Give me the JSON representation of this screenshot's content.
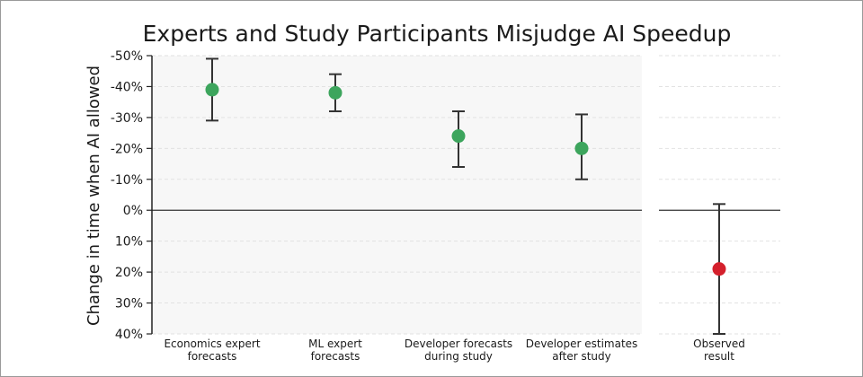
{
  "chart_data": {
    "type": "scatter",
    "title": "Experts and Study Participants Misjudge AI Speedup",
    "ylabel": "Change in time when AI allowed",
    "y_inverted": true,
    "ylim": [
      -50,
      40
    ],
    "yticks": [
      {
        "value": -50,
        "label": "-50%"
      },
      {
        "value": -40,
        "label": "-40%"
      },
      {
        "value": -30,
        "label": "-30%"
      },
      {
        "value": -20,
        "label": "-20%"
      },
      {
        "value": -10,
        "label": "-10%"
      },
      {
        "value": 0,
        "label": "0%"
      },
      {
        "value": 10,
        "label": "10%"
      },
      {
        "value": 20,
        "label": "20%"
      },
      {
        "value": 30,
        "label": "30%"
      },
      {
        "value": 40,
        "label": "40%"
      }
    ],
    "grid": true,
    "panels": [
      {
        "name": "forecasts",
        "background": "#f7f7f7",
        "points": [
          {
            "category": [
              "Economics expert",
              "forecasts"
            ],
            "value": -39,
            "low": -49,
            "high": -29,
            "color": "#3da55d"
          },
          {
            "category": [
              "ML expert",
              "forecasts"
            ],
            "value": -38,
            "low": -44,
            "high": -32,
            "color": "#3da55d"
          },
          {
            "category": [
              "Developer forecasts",
              "during study"
            ],
            "value": -24,
            "low": -32,
            "high": -14,
            "color": "#3da55d"
          },
          {
            "category": [
              "Developer estimates",
              "after study"
            ],
            "value": -20,
            "low": -31,
            "high": -10,
            "color": "#3da55d"
          }
        ]
      },
      {
        "name": "observed",
        "background": "#ffffff",
        "points": [
          {
            "category": [
              "Observed",
              "result"
            ],
            "value": 19,
            "low": -2,
            "high": 40,
            "color": "#d4202c"
          }
        ]
      }
    ]
  }
}
